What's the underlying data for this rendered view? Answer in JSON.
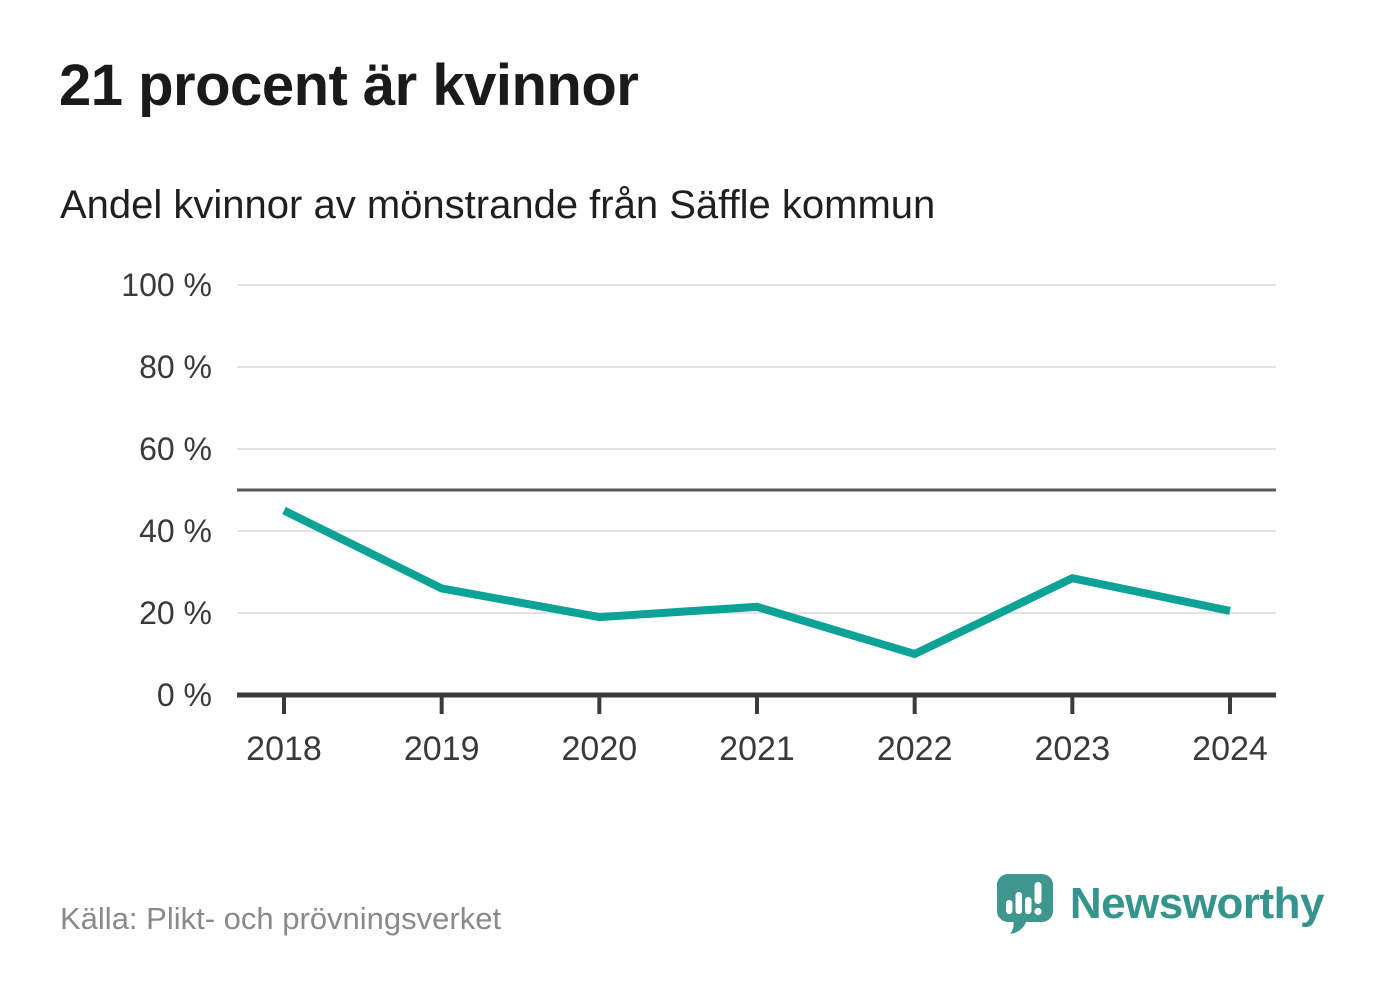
{
  "title": "21 procent är kvinnor",
  "subtitle": "Andel kvinnor av mönstrande från Säffle kommun",
  "source": "Källa: Plikt- och prövningsverket",
  "logo": {
    "text": "Newsworthy"
  },
  "colors": {
    "line": "#0ca295",
    "grid": "#e2e2e2",
    "axis": "#3b3b3b",
    "reference": "#595959",
    "tick_text": "#3a3a3a",
    "muted_text": "#8a8a8a",
    "brand": "#3e968e"
  },
  "chart_data": {
    "type": "line",
    "x": [
      2018,
      2019,
      2020,
      2021,
      2022,
      2023,
      2024
    ],
    "series": [
      {
        "name": "Andel kvinnor av mönstrande",
        "values": [
          45,
          26,
          19,
          21.5,
          10,
          28.5,
          20.5
        ]
      }
    ],
    "unit": "%",
    "title": "21 procent är kvinnor",
    "subtitle": "Andel kvinnor av mönstrande från Säffle kommun",
    "xlabel": "",
    "ylabel": "",
    "ylim": [
      0,
      100
    ],
    "yticks": [
      0,
      20,
      40,
      60,
      80,
      100
    ],
    "ytick_suffix": " %",
    "reference_line": 50,
    "grid": true,
    "legend_position": "none"
  }
}
